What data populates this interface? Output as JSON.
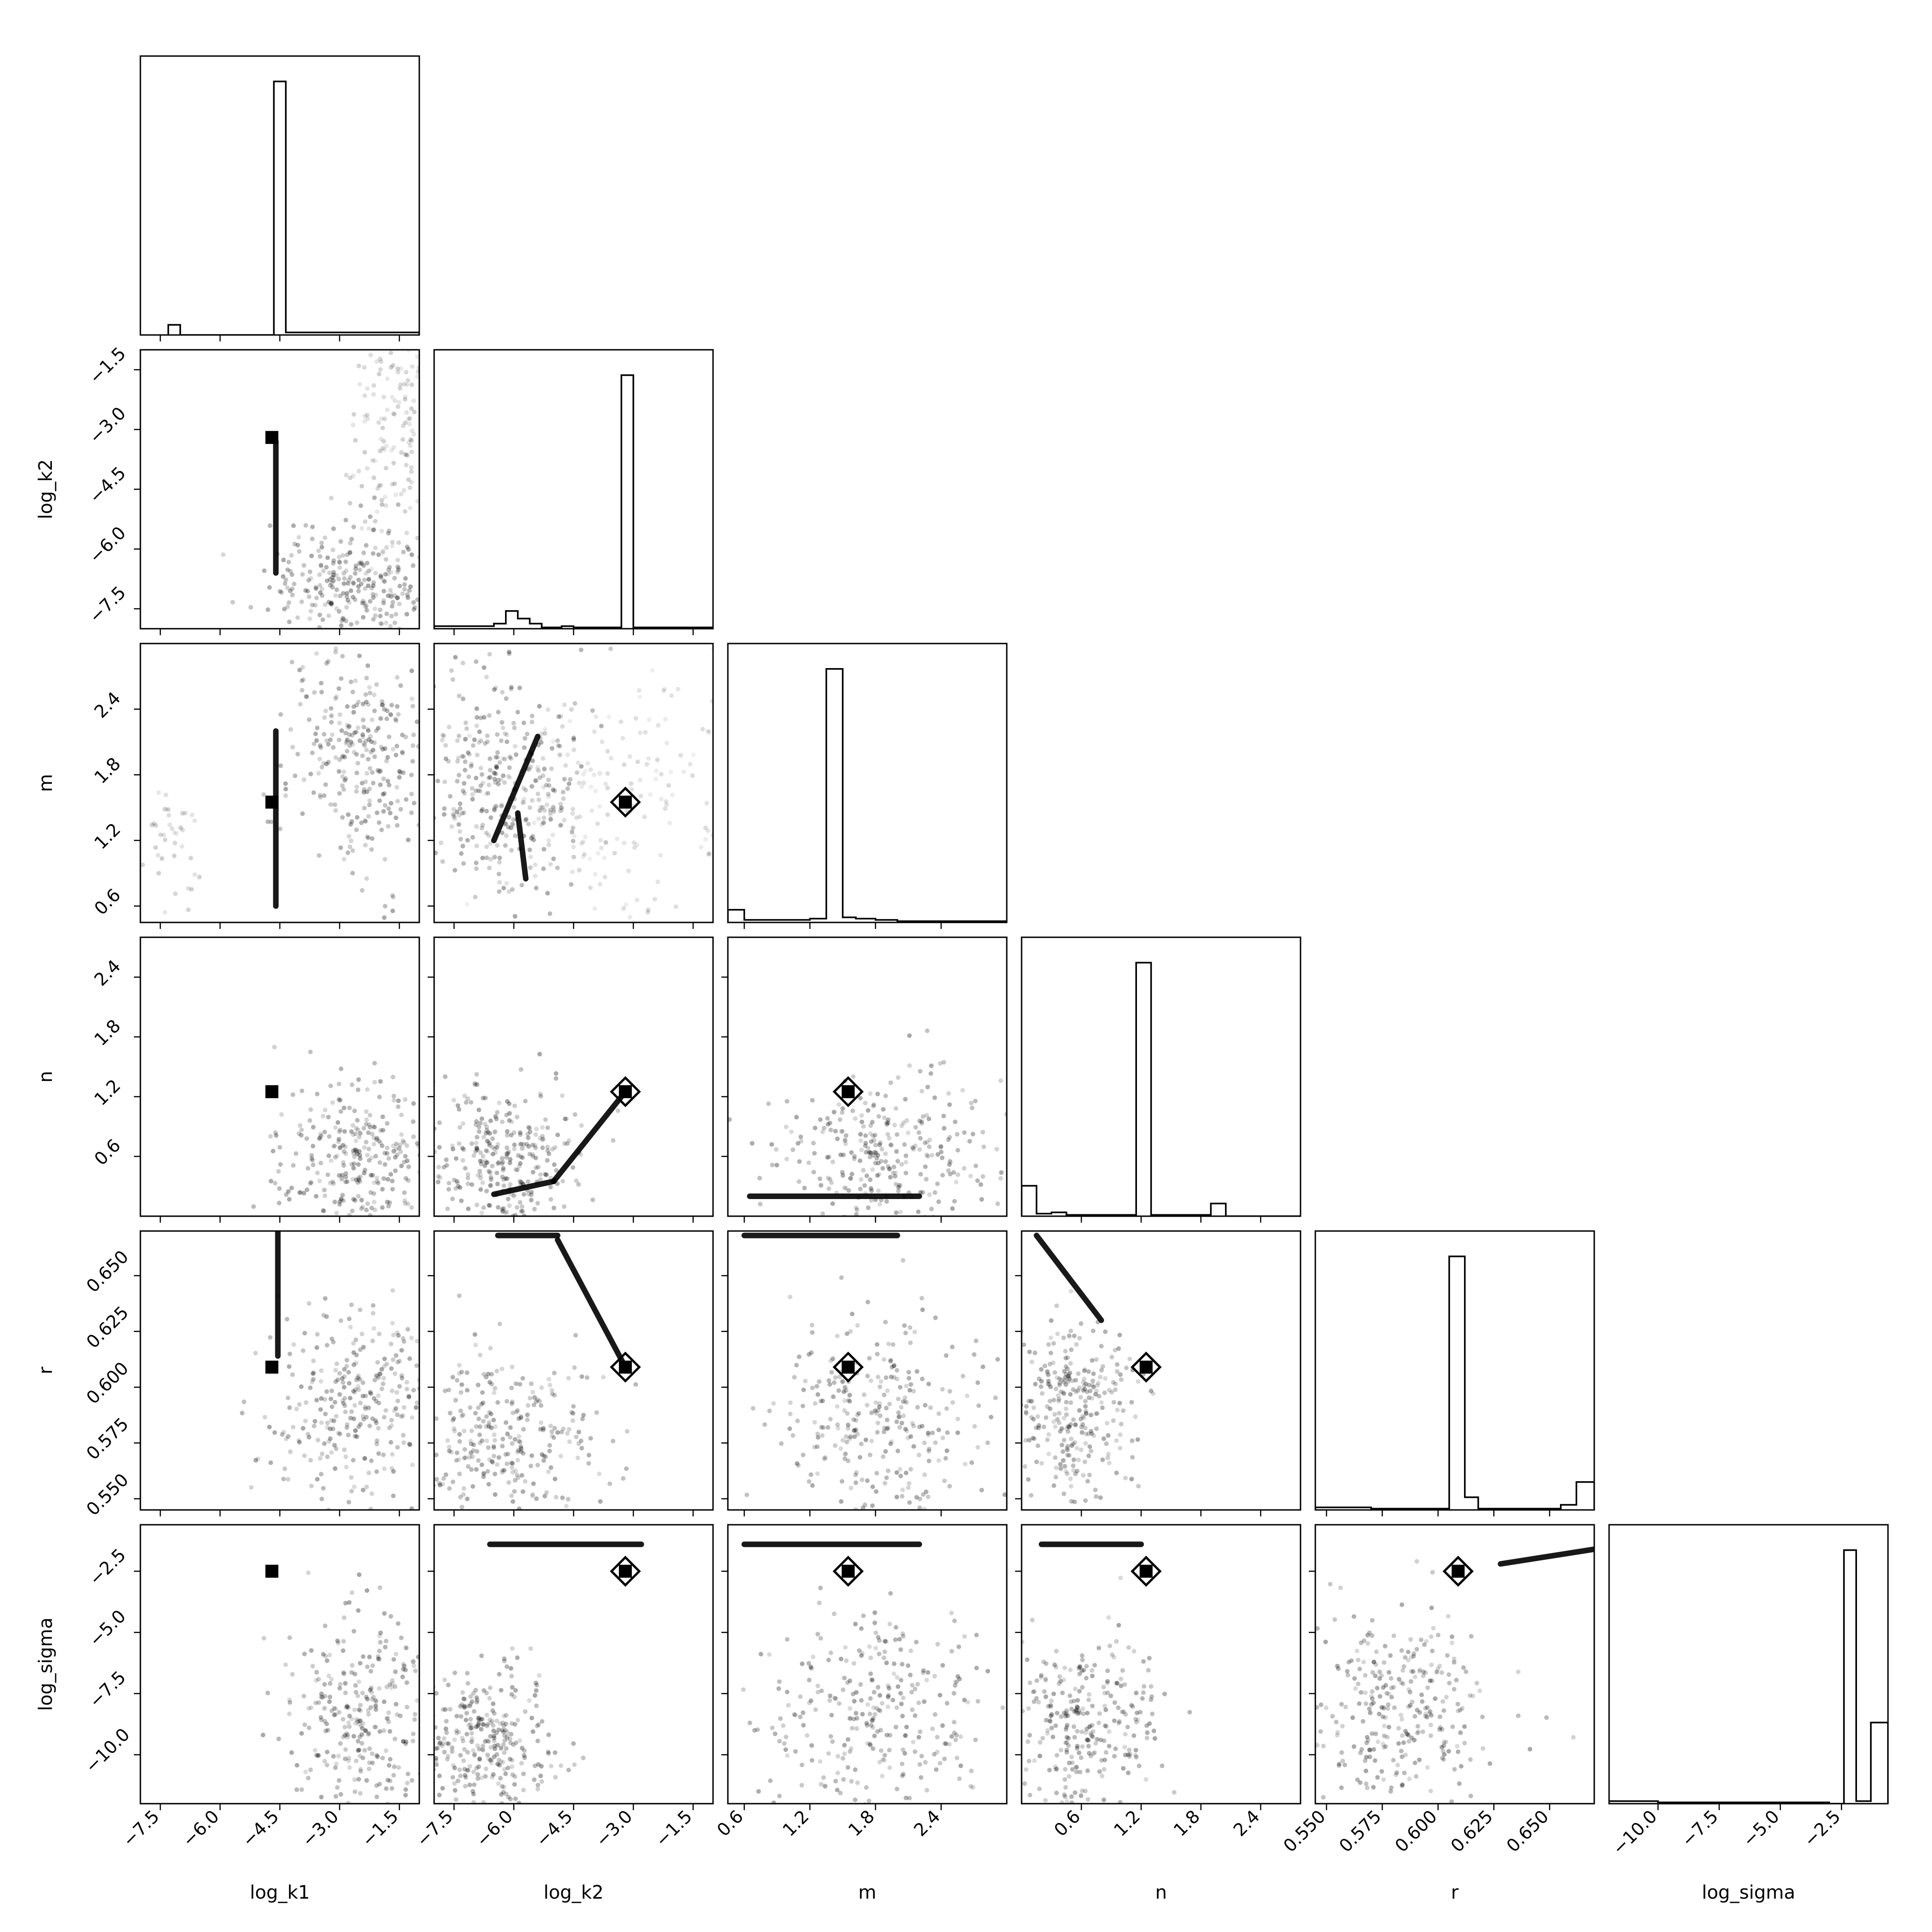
{
  "chart_data": {
    "type": "scatter",
    "subtype": "corner-plot",
    "title": "",
    "colors": {
      "ink": "#000000",
      "background": "#ffffff"
    },
    "parameters": [
      "log_k1",
      "log_k2",
      "m",
      "n",
      "r",
      "log_sigma"
    ],
    "ranges": {
      "log_k1": [
        -8.0,
        -1.0
      ],
      "log_k2": [
        -8.0,
        -1.0
      ],
      "m": [
        0.45,
        3.0
      ],
      "n": [
        0.0,
        2.8
      ],
      "r": [
        0.545,
        0.67
      ],
      "log_sigma": [
        -12.0,
        -0.6
      ]
    },
    "ticks": {
      "log_k1": [
        -7.5,
        -6.0,
        -4.5,
        -3.0,
        -1.5
      ],
      "log_k2": [
        -7.5,
        -6.0,
        -4.5,
        -3.0,
        -1.5
      ],
      "m": [
        0.6,
        1.2,
        1.8,
        2.4
      ],
      "n": [
        0.6,
        1.2,
        1.8,
        2.4
      ],
      "r": [
        0.55,
        0.575,
        0.6,
        0.625,
        0.65
      ],
      "log_sigma": [
        -10.0,
        -7.5,
        -5.0,
        -2.5
      ]
    },
    "tick_labels": {
      "log_k1": [
        "−7.5",
        "−6.0",
        "−4.5",
        "−3.0",
        "−1.5"
      ],
      "log_k2": [
        "−7.5",
        "−6.0",
        "−4.5",
        "−3.0",
        "−1.5"
      ],
      "m": [
        "0.6",
        "1.2",
        "1.8",
        "2.4"
      ],
      "n": [
        "0.6",
        "1.2",
        "1.8",
        "2.4"
      ],
      "r": [
        "0.550",
        "0.575",
        "0.600",
        "0.625",
        "0.650"
      ],
      "log_sigma": [
        "−10.0",
        "−7.5",
        "−5.0",
        "−2.5"
      ]
    },
    "truths": {
      "log_k1": -4.7,
      "log_k2": -3.2,
      "m": 1.55,
      "n": 1.25,
      "r": 0.609,
      "log_sigma": -2.5
    },
    "histograms": {
      "log_k1": {
        "bins": [
          -7.3,
          -7.0,
          -4.65,
          -4.35,
          -1.0
        ],
        "counts": [
          0.04,
          0.0,
          1.0,
          0.01
        ],
        "ymax": 1.1
      },
      "log_k2": {
        "bins": [
          -8.0,
          -6.8,
          -6.5,
          -6.2,
          -5.9,
          -5.6,
          -5.3,
          -4.8,
          -4.5,
          -4.2,
          -3.6,
          -3.3,
          -3.0,
          -1.0
        ],
        "counts": [
          0.01,
          0.01,
          0.02,
          0.07,
          0.04,
          0.02,
          0.005,
          0.01,
          0.005,
          0.005,
          0.005,
          1.0,
          0.005
        ],
        "ymax": 1.1
      },
      "m": {
        "bins": [
          0.45,
          0.6,
          0.75,
          0.9,
          1.2,
          1.35,
          1.5,
          1.62,
          1.8,
          2.0,
          2.4,
          3.0
        ],
        "counts": [
          0.05,
          0.01,
          0.01,
          0.01,
          0.015,
          1.0,
          0.02,
          0.015,
          0.01,
          0.005,
          0.005
        ],
        "ymax": 1.1
      },
      "n": {
        "bins": [
          0.0,
          0.15,
          0.3,
          0.45,
          0.6,
          0.9,
          1.15,
          1.3,
          1.9,
          2.05,
          2.8
        ],
        "counts": [
          0.12,
          0.01,
          0.015,
          0.005,
          0.005,
          0.005,
          1.0,
          0.005,
          0.05,
          0.0
        ],
        "ymax": 1.1
      },
      "r": {
        "bins": [
          0.545,
          0.57,
          0.605,
          0.612,
          0.618,
          0.655,
          0.662,
          0.67
        ],
        "counts": [
          0.01,
          0.005,
          1.0,
          0.05,
          0.005,
          0.02,
          0.11
        ],
        "ymax": 1.1
      },
      "log_sigma": {
        "bins": [
          -12.0,
          -10.0,
          -7.0,
          -3.0,
          -2.4,
          -1.9,
          -1.3,
          -0.6
        ],
        "counts": [
          0.01,
          0.005,
          0.005,
          0.0,
          1.0,
          0.01,
          0.32
        ],
        "ymax": 1.1
      }
    },
    "pairs": [
      {
        "x": "log_k1",
        "y": "log_k2",
        "clusters": [
          {
            "center": [
              -2.5,
              -6.8
            ],
            "spread": [
              1.1,
              0.8
            ],
            "n": 300,
            "alpha": 0.35
          },
          {
            "center": [
              -1.7,
              -3.0
            ],
            "spread": [
              0.6,
              1.5
            ],
            "n": 160,
            "alpha": 0.2
          }
        ],
        "segments": [
          [
            [
              -4.6,
              -3.3
            ],
            [
              -4.6,
              -6.6
            ]
          ]
        ]
      },
      {
        "x": "log_k1",
        "y": "m",
        "clusters": [
          {
            "center": [
              -2.5,
              2.0
            ],
            "spread": [
              0.9,
              0.55
            ],
            "n": 300,
            "alpha": 0.35
          },
          {
            "center": [
              -7.3,
              1.2
            ],
            "spread": [
              0.5,
              0.25
            ],
            "n": 40,
            "alpha": 0.2
          }
        ],
        "segments": [
          [
            [
              -4.6,
              0.6
            ],
            [
              -4.6,
              2.2
            ]
          ]
        ]
      },
      {
        "x": "log_k1",
        "y": "n",
        "clusters": [
          {
            "center": [
              -2.6,
              0.55
            ],
            "spread": [
              1.0,
              0.4
            ],
            "n": 300,
            "alpha": 0.35
          }
        ],
        "segments": []
      },
      {
        "x": "log_k1",
        "y": "r",
        "clusters": [
          {
            "center": [
              -2.6,
              0.59
            ],
            "spread": [
              1.0,
              0.022
            ],
            "n": 300,
            "alpha": 0.35
          }
        ],
        "segments": [
          [
            [
              -4.55,
              0.614
            ],
            [
              -4.55,
              0.67
            ]
          ]
        ]
      },
      {
        "x": "log_k1",
        "y": "log_sigma",
        "clusters": [
          {
            "center": [
              -2.4,
              -8.3
            ],
            "spread": [
              0.9,
              2.4
            ],
            "n": 300,
            "alpha": 0.35
          }
        ],
        "segments": []
      },
      {
        "x": "log_k2",
        "y": "m",
        "clusters": [
          {
            "center": [
              -6.3,
              1.75
            ],
            "spread": [
              1.1,
              0.5
            ],
            "n": 320,
            "alpha": 0.35
          },
          {
            "center": [
              -3.6,
              1.5
            ],
            "spread": [
              1.8,
              0.6
            ],
            "n": 200,
            "alpha": 0.15
          }
        ],
        "segments": [
          [
            [
              -6.5,
              1.2
            ],
            [
              -5.4,
              2.15
            ]
          ],
          [
            [
              -5.9,
              1.45
            ],
            [
              -5.7,
              0.85
            ]
          ]
        ]
      },
      {
        "x": "log_k2",
        "y": "n",
        "clusters": [
          {
            "center": [
              -6.3,
              0.55
            ],
            "spread": [
              1.0,
              0.4
            ],
            "n": 320,
            "alpha": 0.35
          }
        ],
        "segments": [
          [
            [
              -6.5,
              0.22
            ],
            [
              -5.0,
              0.35
            ]
          ],
          [
            [
              -5.0,
              0.35
            ],
            [
              -3.2,
              1.25
            ]
          ]
        ]
      },
      {
        "x": "log_k2",
        "y": "r",
        "clusters": [
          {
            "center": [
              -6.3,
              0.575
            ],
            "spread": [
              1.2,
              0.022
            ],
            "n": 320,
            "alpha": 0.35
          }
        ],
        "segments": [
          [
            [
              -6.4,
              0.668
            ],
            [
              -4.9,
              0.668
            ]
          ],
          [
            [
              -4.9,
              0.666
            ],
            [
              -3.2,
              0.609
            ]
          ]
        ]
      },
      {
        "x": "log_k2",
        "y": "log_sigma",
        "clusters": [
          {
            "center": [
              -6.8,
              -9.3
            ],
            "spread": [
              1.0,
              1.5
            ],
            "n": 320,
            "alpha": 0.35
          }
        ],
        "segments": [
          [
            [
              -6.6,
              -1.4
            ],
            [
              -2.8,
              -1.4
            ]
          ]
        ]
      },
      {
        "x": "m",
        "y": "n",
        "clusters": [
          {
            "center": [
              1.9,
              0.6
            ],
            "spread": [
              0.5,
              0.4
            ],
            "n": 300,
            "alpha": 0.35
          }
        ],
        "segments": [
          [
            [
              0.65,
              0.2
            ],
            [
              2.2,
              0.2
            ]
          ]
        ]
      },
      {
        "x": "m",
        "y": "r",
        "clusters": [
          {
            "center": [
              1.8,
              0.585
            ],
            "spread": [
              0.45,
              0.022
            ],
            "n": 300,
            "alpha": 0.35
          }
        ],
        "segments": [
          [
            [
              0.6,
              0.668
            ],
            [
              2.0,
              0.668
            ]
          ]
        ]
      },
      {
        "x": "m",
        "y": "log_sigma",
        "clusters": [
          {
            "center": [
              1.8,
              -8.5
            ],
            "spread": [
              0.5,
              2.2
            ],
            "n": 300,
            "alpha": 0.35
          }
        ],
        "segments": [
          [
            [
              0.6,
              -1.4
            ],
            [
              2.2,
              -1.4
            ]
          ]
        ]
      },
      {
        "x": "n",
        "y": "r",
        "clusters": [
          {
            "center": [
              0.5,
              0.59
            ],
            "spread": [
              0.32,
              0.02
            ],
            "n": 300,
            "alpha": 0.35
          }
        ],
        "segments": [
          [
            [
              0.15,
              0.668
            ],
            [
              0.8,
              0.63
            ]
          ]
        ]
      },
      {
        "x": "n",
        "y": "log_sigma",
        "clusters": [
          {
            "center": [
              0.6,
              -9.0
            ],
            "spread": [
              0.4,
              1.8
            ],
            "n": 300,
            "alpha": 0.35
          }
        ],
        "segments": [
          [
            [
              0.2,
              -1.4
            ],
            [
              1.2,
              -1.4
            ]
          ]
        ]
      },
      {
        "x": "r",
        "y": "log_sigma",
        "clusters": [
          {
            "center": [
              0.585,
              -8.2
            ],
            "spread": [
              0.02,
              2.0
            ],
            "n": 300,
            "alpha": 0.35
          }
        ],
        "segments": [
          [
            [
              0.628,
              -2.2
            ],
            [
              0.67,
              -1.6
            ]
          ]
        ]
      }
    ],
    "grid": false,
    "legend": "none"
  }
}
